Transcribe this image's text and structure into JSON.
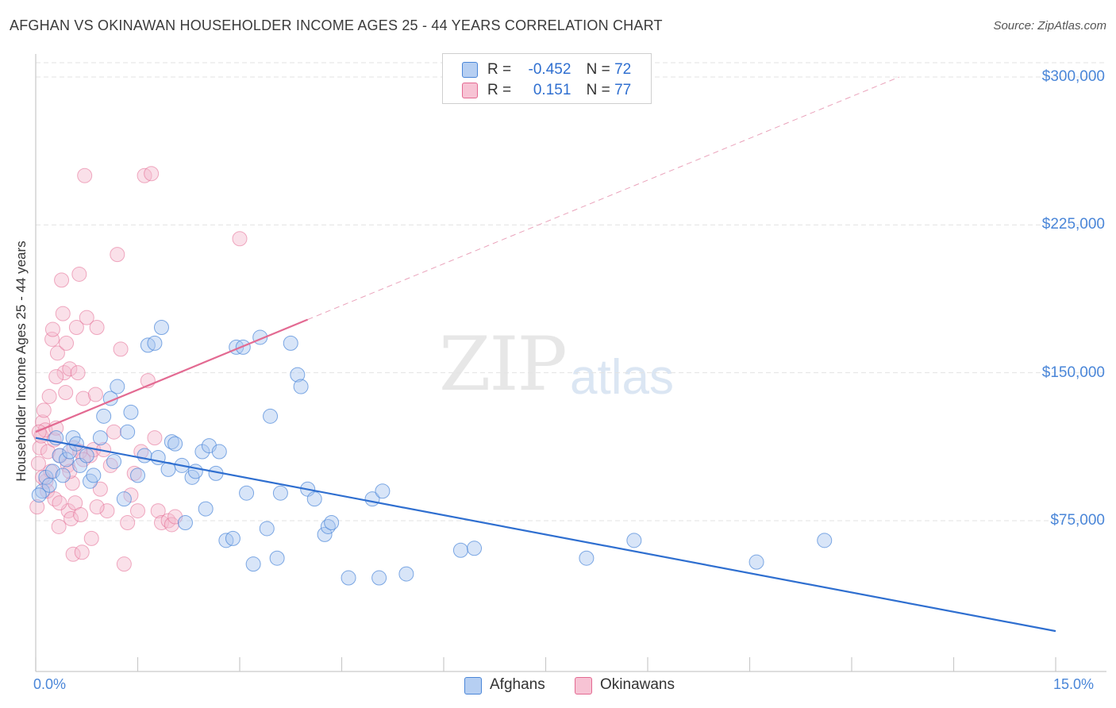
{
  "title": "AFGHAN VS OKINAWAN HOUSEHOLDER INCOME AGES 25 - 44 YEARS CORRELATION CHART",
  "source": "Source: ZipAtlas.com",
  "watermark": {
    "zip": "ZIP",
    "atlas": "atlas"
  },
  "legend": {
    "r_label": "R =",
    "n_label": "N =",
    "afghans": {
      "r": "-0.452",
      "n": "72"
    },
    "okinawans": {
      "r": "0.151",
      "n": "77"
    }
  },
  "bottom_legend": {
    "afghans": "Afghans",
    "okinawans": "Okinawans"
  },
  "colors": {
    "afghans": "#4a86d8",
    "afghans_fill": "#a9c6ef",
    "okinawans": "#e36a92",
    "okinawans_fill": "#f4bace"
  },
  "chart_data": {
    "type": "scatter",
    "title": "AFGHAN VS OKINAWAN HOUSEHOLDER INCOME AGES 25 - 44 YEARS CORRELATION CHART",
    "xlabel": "",
    "ylabel": "Householder Income Ages 25 - 44 years",
    "xlim": [
      0,
      15
    ],
    "ylim": [
      0,
      315000
    ],
    "x_tick_labels": [
      "0.0%",
      "15.0%"
    ],
    "y_ticks": [
      75000,
      150000,
      225000,
      300000
    ],
    "y_tick_labels": [
      "$75,000",
      "$150,000",
      "$225,000",
      "$300,000"
    ],
    "grid": true,
    "legend_position": "top-center",
    "series": [
      {
        "name": "Afghans",
        "color": "#4a86d8",
        "trend": {
          "x": [
            0.0,
            15.0
          ],
          "y": [
            117000,
            19000
          ]
        },
        "points": [
          [
            0.1,
            90000
          ],
          [
            0.15,
            97000
          ],
          [
            0.2,
            93000
          ],
          [
            0.25,
            100000
          ],
          [
            0.3,
            117000
          ],
          [
            0.35,
            108000
          ],
          [
            0.4,
            98000
          ],
          [
            0.45,
            106000
          ],
          [
            0.5,
            110000
          ],
          [
            0.55,
            117000
          ],
          [
            0.6,
            114000
          ],
          [
            0.65,
            103000
          ],
          [
            0.75,
            108000
          ],
          [
            0.8,
            95000
          ],
          [
            0.85,
            98000
          ],
          [
            0.95,
            117000
          ],
          [
            1.0,
            128000
          ],
          [
            1.1,
            137000
          ],
          [
            1.15,
            105000
          ],
          [
            1.2,
            143000
          ],
          [
            1.3,
            86000
          ],
          [
            1.35,
            120000
          ],
          [
            1.4,
            130000
          ],
          [
            1.5,
            98000
          ],
          [
            1.6,
            108000
          ],
          [
            1.65,
            164000
          ],
          [
            1.75,
            165000
          ],
          [
            1.8,
            107000
          ],
          [
            1.85,
            173000
          ],
          [
            1.95,
            101000
          ],
          [
            2.0,
            115000
          ],
          [
            2.05,
            114000
          ],
          [
            2.15,
            103000
          ],
          [
            2.2,
            74000
          ],
          [
            2.3,
            97000
          ],
          [
            2.35,
            100000
          ],
          [
            2.45,
            110000
          ],
          [
            2.5,
            81000
          ],
          [
            2.55,
            113000
          ],
          [
            2.65,
            99000
          ],
          [
            2.7,
            110000
          ],
          [
            2.8,
            65000
          ],
          [
            2.9,
            66000
          ],
          [
            2.95,
            163000
          ],
          [
            3.05,
            163000
          ],
          [
            3.1,
            89000
          ],
          [
            3.2,
            53000
          ],
          [
            3.3,
            168000
          ],
          [
            3.4,
            71000
          ],
          [
            3.45,
            128000
          ],
          [
            3.55,
            56000
          ],
          [
            3.6,
            89000
          ],
          [
            3.75,
            165000
          ],
          [
            3.85,
            149000
          ],
          [
            3.9,
            143000
          ],
          [
            4.0,
            91000
          ],
          [
            4.1,
            86000
          ],
          [
            4.25,
            68000
          ],
          [
            4.3,
            72000
          ],
          [
            4.35,
            74000
          ],
          [
            4.6,
            46000
          ],
          [
            4.95,
            86000
          ],
          [
            5.05,
            46000
          ],
          [
            5.1,
            90000
          ],
          [
            5.45,
            48000
          ],
          [
            6.25,
            60000
          ],
          [
            6.45,
            61000
          ],
          [
            8.1,
            56000
          ],
          [
            8.8,
            65000
          ],
          [
            10.6,
            54000
          ],
          [
            11.6,
            65000
          ],
          [
            0.05,
            88000
          ]
        ]
      },
      {
        "name": "Okinawans",
        "color": "#e36a92",
        "trend": {
          "x": [
            0.0,
            4.0
          ],
          "y": [
            120000,
            177000
          ]
        },
        "trend_extension": {
          "x": [
            4.0,
            12.7
          ],
          "y": [
            177000,
            300000
          ]
        },
        "points": [
          [
            0.02,
            82000
          ],
          [
            0.04,
            104000
          ],
          [
            0.06,
            112000
          ],
          [
            0.08,
            118000
          ],
          [
            0.1,
            125000
          ],
          [
            0.12,
            131000
          ],
          [
            0.14,
            121000
          ],
          [
            0.15,
            95000
          ],
          [
            0.17,
            90000
          ],
          [
            0.18,
            110000
          ],
          [
            0.2,
            138000
          ],
          [
            0.22,
            100000
          ],
          [
            0.24,
            167000
          ],
          [
            0.25,
            172000
          ],
          [
            0.27,
            116000
          ],
          [
            0.28,
            86000
          ],
          [
            0.3,
            122000
          ],
          [
            0.32,
            160000
          ],
          [
            0.34,
            72000
          ],
          [
            0.36,
            108000
          ],
          [
            0.38,
            197000
          ],
          [
            0.4,
            180000
          ],
          [
            0.42,
            150000
          ],
          [
            0.44,
            140000
          ],
          [
            0.45,
            165000
          ],
          [
            0.47,
            103000
          ],
          [
            0.48,
            80000
          ],
          [
            0.5,
            152000
          ],
          [
            0.52,
            76000
          ],
          [
            0.54,
            94000
          ],
          [
            0.55,
            58000
          ],
          [
            0.56,
            112000
          ],
          [
            0.58,
            84000
          ],
          [
            0.6,
            173000
          ],
          [
            0.62,
            150000
          ],
          [
            0.64,
            200000
          ],
          [
            0.66,
            78000
          ],
          [
            0.68,
            59000
          ],
          [
            0.7,
            137000
          ],
          [
            0.72,
            250000
          ],
          [
            0.75,
            178000
          ],
          [
            0.8,
            108000
          ],
          [
            0.82,
            66000
          ],
          [
            0.85,
            111000
          ],
          [
            0.88,
            139000
          ],
          [
            0.9,
            173000
          ],
          [
            0.95,
            91000
          ],
          [
            1.0,
            111000
          ],
          [
            1.05,
            80000
          ],
          [
            1.1,
            103000
          ],
          [
            1.15,
            120000
          ],
          [
            1.2,
            210000
          ],
          [
            1.25,
            162000
          ],
          [
            1.3,
            53000
          ],
          [
            1.35,
            74000
          ],
          [
            1.4,
            88000
          ],
          [
            1.45,
            99000
          ],
          [
            1.5,
            80000
          ],
          [
            1.55,
            110000
          ],
          [
            1.6,
            250000
          ],
          [
            1.65,
            146000
          ],
          [
            1.7,
            251000
          ],
          [
            1.75,
            117000
          ],
          [
            1.8,
            80000
          ],
          [
            1.85,
            74000
          ],
          [
            1.95,
            75000
          ],
          [
            2.0,
            73000
          ],
          [
            2.05,
            77000
          ],
          [
            3.0,
            218000
          ],
          [
            0.35,
            84000
          ],
          [
            0.65,
            110000
          ],
          [
            0.05,
            120000
          ],
          [
            0.1,
            97000
          ],
          [
            0.3,
            148000
          ],
          [
            0.5,
            100000
          ],
          [
            0.7,
            106000
          ],
          [
            0.9,
            82000
          ]
        ]
      }
    ]
  }
}
